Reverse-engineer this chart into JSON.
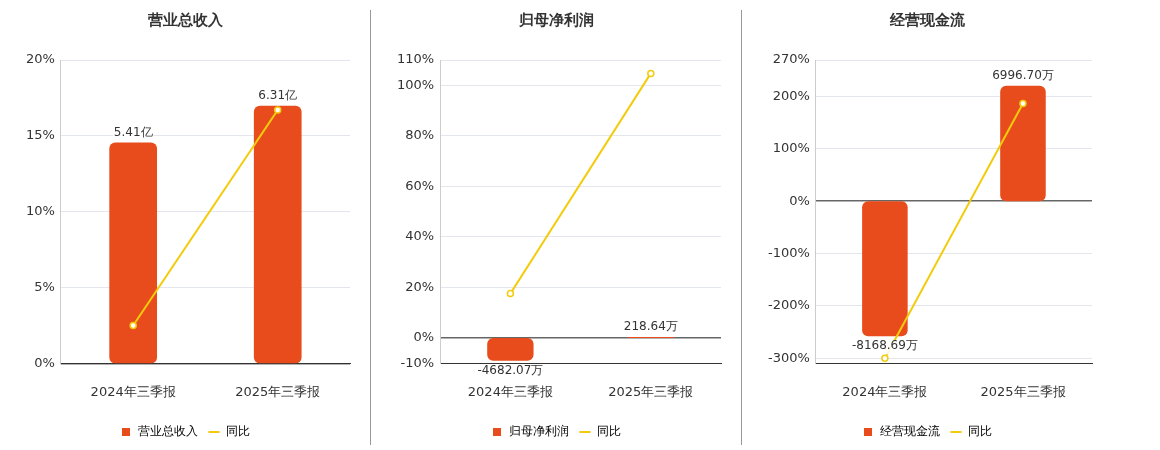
{
  "chart_data": [
    {
      "type": "bar",
      "title": "营业总收入",
      "categories": [
        "2024年三季报",
        "2025年三季报"
      ],
      "legend": "bottom",
      "grid": "y",
      "ylim": [
        0,
        20
      ],
      "yticks": [
        {
          "value": 0,
          "label": "0%"
        },
        {
          "value": 5,
          "label": "5%"
        },
        {
          "value": 10,
          "label": "10%"
        },
        {
          "value": 15,
          "label": "15%"
        },
        {
          "value": 20,
          "label": "20%"
        }
      ],
      "y2lim": [
        0,
        7.43
      ],
      "series": [
        {
          "name": "营业总收入",
          "axis": "y2",
          "color": "#e84c1c",
          "values": [
            5.41,
            6.31
          ],
          "value_labels": [
            "5.41亿",
            "6.31亿"
          ]
        },
        {
          "name": "同比",
          "type": "line",
          "color": "#f2cc0c",
          "marker": "circle",
          "values": [
            2.5,
            16.7
          ]
        }
      ]
    },
    {
      "type": "bar",
      "title": "归母净利润",
      "categories": [
        "2024年三季报",
        "2025年三季报"
      ],
      "legend": "bottom",
      "grid": "y",
      "ylim": [
        -10,
        110
      ],
      "yticks": [
        {
          "value": -10,
          "label": "-10%"
        },
        {
          "value": 0,
          "label": "0%"
        },
        {
          "value": 20,
          "label": "20%"
        },
        {
          "value": 40,
          "label": "40%"
        },
        {
          "value": 60,
          "label": "60%"
        },
        {
          "value": 80,
          "label": "80%"
        },
        {
          "value": 100,
          "label": "100%"
        },
        {
          "value": 110,
          "label": "110%"
        }
      ],
      "y2lim": [
        -5226,
        57486
      ],
      "series": [
        {
          "name": "归母净利润",
          "axis": "y2",
          "color": "#e84c1c",
          "values": [
            -4682.07,
            218.64
          ],
          "value_labels": [
            "-4682.07万",
            "218.64万"
          ]
        },
        {
          "name": "同比",
          "type": "line",
          "color": "#f2cc0c",
          "marker": "circle",
          "values": [
            17.6,
            104.7
          ]
        }
      ]
    },
    {
      "type": "bar",
      "title": "经营现金流",
      "categories": [
        "2024年三季报",
        "2025年三季报"
      ],
      "legend": "bottom",
      "grid": "y",
      "ylim": [
        -310,
        270
      ],
      "yticks": [
        {
          "value": -300,
          "label": "-300%"
        },
        {
          "value": -200,
          "label": "-200%"
        },
        {
          "value": -100,
          "label": "-100%"
        },
        {
          "value": 0,
          "label": "0%"
        },
        {
          "value": 100,
          "label": "100%"
        },
        {
          "value": 200,
          "label": "200%"
        },
        {
          "value": 270,
          "label": "270%"
        }
      ],
      "y2lim": [
        -9815,
        8548
      ],
      "series": [
        {
          "name": "经营现金流",
          "axis": "y2",
          "color": "#e84c1c",
          "values": [
            -8168.69,
            6996.7
          ],
          "value_labels": [
            "-8168.69万",
            "6996.70万"
          ]
        },
        {
          "name": "同比",
          "type": "line",
          "color": "#f2cc0c",
          "marker": "circle",
          "values": [
            -300,
            187
          ]
        }
      ]
    }
  ]
}
